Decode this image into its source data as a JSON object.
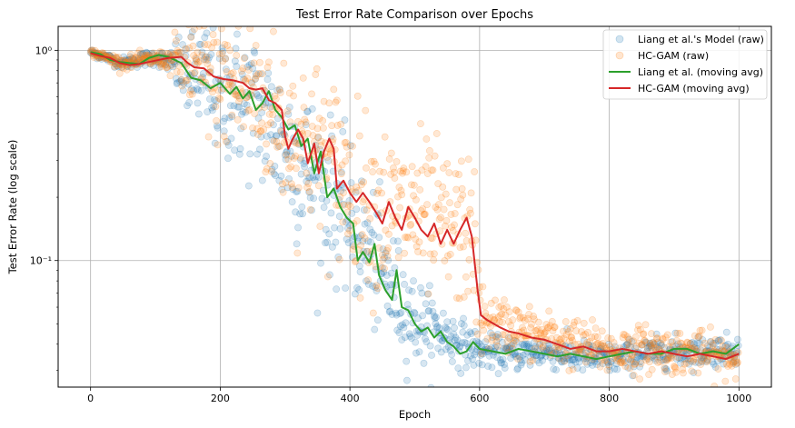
{
  "chart_data": {
    "type": "scatter",
    "title": "Test Error Rate Comparison over Epochs",
    "xlabel": "Epoch",
    "ylabel": "Test Error Rate (log scale)",
    "xlim": [
      -50,
      1050
    ],
    "ylim": [
      0.025,
      1.3
    ],
    "yscale": "log",
    "grid": true,
    "legend_position": "top-right",
    "x_ticks": [
      0,
      200,
      400,
      600,
      800,
      1000
    ],
    "x_tick_labels": [
      "0",
      "200",
      "400",
      "600",
      "800",
      "1000"
    ],
    "y_major_ticks": [
      0.1,
      1
    ],
    "y_major_labels": [
      "10⁻¹",
      "10⁰"
    ],
    "y_minor_ticks": [
      0.03,
      0.04,
      0.05,
      0.06,
      0.07,
      0.08,
      0.09,
      0.2,
      0.3,
      0.4,
      0.5,
      0.6,
      0.7,
      0.8,
      0.9
    ],
    "n_raw_points": 1000,
    "colors": {
      "liang": "#1f77b4",
      "hcgam": "#ff7f0e",
      "liang_avg": "#2ca02c",
      "hcgam_avg": "#d62728"
    },
    "series": [
      {
        "name": "Liang et al.'s Model (raw)",
        "kind": "scatter",
        "color": "#1f77b4",
        "anchors": [
          [
            0,
            0.98
          ],
          [
            50,
            0.87
          ],
          [
            100,
            0.93
          ],
          [
            150,
            0.8
          ],
          [
            200,
            0.63
          ],
          [
            250,
            0.55
          ],
          [
            300,
            0.36
          ],
          [
            350,
            0.24
          ],
          [
            400,
            0.15
          ],
          [
            450,
            0.085
          ],
          [
            500,
            0.052
          ],
          [
            550,
            0.044
          ],
          [
            600,
            0.037
          ],
          [
            650,
            0.036
          ],
          [
            700,
            0.037
          ],
          [
            750,
            0.035
          ],
          [
            800,
            0.034
          ],
          [
            850,
            0.036
          ],
          [
            900,
            0.037
          ],
          [
            950,
            0.037
          ],
          [
            1000,
            0.038
          ]
        ],
        "spread": [
          [
            0,
            0.02
          ],
          [
            120,
            0.05
          ],
          [
            150,
            0.3
          ],
          [
            300,
            0.45
          ],
          [
            450,
            0.35
          ],
          [
            520,
            0.2
          ],
          [
            600,
            0.09
          ],
          [
            1000,
            0.08
          ]
        ]
      },
      {
        "name": "HC-GAM (raw)",
        "kind": "scatter",
        "color": "#ff7f0e",
        "anchors": [
          [
            0,
            0.98
          ],
          [
            50,
            0.87
          ],
          [
            100,
            0.91
          ],
          [
            150,
            0.88
          ],
          [
            200,
            0.72
          ],
          [
            250,
            0.64
          ],
          [
            300,
            0.42
          ],
          [
            350,
            0.35
          ],
          [
            380,
            0.28
          ],
          [
            400,
            0.22
          ],
          [
            450,
            0.17
          ],
          [
            500,
            0.17
          ],
          [
            550,
            0.14
          ],
          [
            590,
            0.14
          ],
          [
            600,
            0.052
          ],
          [
            650,
            0.048
          ],
          [
            700,
            0.043
          ],
          [
            750,
            0.04
          ],
          [
            800,
            0.037
          ],
          [
            850,
            0.038
          ],
          [
            900,
            0.037
          ],
          [
            950,
            0.036
          ],
          [
            1000,
            0.034
          ]
        ],
        "spread": [
          [
            0,
            0.02
          ],
          [
            120,
            0.05
          ],
          [
            150,
            0.3
          ],
          [
            300,
            0.45
          ],
          [
            450,
            0.45
          ],
          [
            590,
            0.4
          ],
          [
            610,
            0.15
          ],
          [
            1000,
            0.11
          ]
        ]
      },
      {
        "name": "Liang et al. (moving avg)",
        "kind": "line",
        "color": "#2ca02c",
        "points": [
          [
            0,
            0.98
          ],
          [
            15,
            0.96
          ],
          [
            30,
            0.9
          ],
          [
            45,
            0.88
          ],
          [
            60,
            0.87
          ],
          [
            75,
            0.86
          ],
          [
            90,
            0.92
          ],
          [
            105,
            0.95
          ],
          [
            120,
            0.93
          ],
          [
            140,
            0.87
          ],
          [
            155,
            0.74
          ],
          [
            170,
            0.72
          ],
          [
            185,
            0.66
          ],
          [
            200,
            0.7
          ],
          [
            215,
            0.62
          ],
          [
            225,
            0.67
          ],
          [
            235,
            0.59
          ],
          [
            245,
            0.64
          ],
          [
            255,
            0.52
          ],
          [
            265,
            0.56
          ],
          [
            275,
            0.64
          ],
          [
            285,
            0.52
          ],
          [
            295,
            0.48
          ],
          [
            305,
            0.42
          ],
          [
            315,
            0.44
          ],
          [
            325,
            0.35
          ],
          [
            335,
            0.38
          ],
          [
            345,
            0.26
          ],
          [
            355,
            0.33
          ],
          [
            365,
            0.2
          ],
          [
            375,
            0.22
          ],
          [
            385,
            0.18
          ],
          [
            395,
            0.16
          ],
          [
            405,
            0.15
          ],
          [
            412,
            0.1
          ],
          [
            420,
            0.11
          ],
          [
            430,
            0.098
          ],
          [
            438,
            0.12
          ],
          [
            445,
            0.085
          ],
          [
            455,
            0.072
          ],
          [
            465,
            0.065
          ],
          [
            472,
            0.09
          ],
          [
            480,
            0.06
          ],
          [
            490,
            0.058
          ],
          [
            500,
            0.05
          ],
          [
            510,
            0.046
          ],
          [
            520,
            0.048
          ],
          [
            530,
            0.043
          ],
          [
            540,
            0.046
          ],
          [
            550,
            0.041
          ],
          [
            560,
            0.039
          ],
          [
            570,
            0.036
          ],
          [
            580,
            0.037
          ],
          [
            590,
            0.041
          ],
          [
            600,
            0.038
          ],
          [
            620,
            0.037
          ],
          [
            640,
            0.036
          ],
          [
            660,
            0.038
          ],
          [
            680,
            0.037
          ],
          [
            700,
            0.036
          ],
          [
            720,
            0.035
          ],
          [
            740,
            0.036
          ],
          [
            760,
            0.035
          ],
          [
            780,
            0.034
          ],
          [
            800,
            0.035
          ],
          [
            820,
            0.036
          ],
          [
            840,
            0.037
          ],
          [
            860,
            0.036
          ],
          [
            880,
            0.036
          ],
          [
            900,
            0.038
          ],
          [
            920,
            0.038
          ],
          [
            940,
            0.036
          ],
          [
            960,
            0.037
          ],
          [
            980,
            0.036
          ],
          [
            1000,
            0.04
          ]
        ]
      },
      {
        "name": "HC-GAM (moving avg)",
        "kind": "line",
        "color": "#d62728",
        "points": [
          [
            0,
            0.97
          ],
          [
            15,
            0.94
          ],
          [
            30,
            0.92
          ],
          [
            45,
            0.87
          ],
          [
            60,
            0.85
          ],
          [
            75,
            0.86
          ],
          [
            90,
            0.88
          ],
          [
            105,
            0.9
          ],
          [
            120,
            0.92
          ],
          [
            140,
            0.93
          ],
          [
            150,
            0.87
          ],
          [
            160,
            0.83
          ],
          [
            175,
            0.82
          ],
          [
            190,
            0.75
          ],
          [
            205,
            0.73
          ],
          [
            220,
            0.72
          ],
          [
            235,
            0.7
          ],
          [
            245,
            0.66
          ],
          [
            255,
            0.65
          ],
          [
            265,
            0.66
          ],
          [
            275,
            0.58
          ],
          [
            285,
            0.56
          ],
          [
            295,
            0.52
          ],
          [
            300,
            0.39
          ],
          [
            305,
            0.34
          ],
          [
            312,
            0.38
          ],
          [
            320,
            0.42
          ],
          [
            328,
            0.38
          ],
          [
            335,
            0.29
          ],
          [
            345,
            0.36
          ],
          [
            352,
            0.26
          ],
          [
            360,
            0.33
          ],
          [
            368,
            0.38
          ],
          [
            375,
            0.34
          ],
          [
            380,
            0.22
          ],
          [
            390,
            0.24
          ],
          [
            400,
            0.21
          ],
          [
            410,
            0.19
          ],
          [
            420,
            0.21
          ],
          [
            430,
            0.19
          ],
          [
            440,
            0.17
          ],
          [
            450,
            0.15
          ],
          [
            460,
            0.19
          ],
          [
            470,
            0.16
          ],
          [
            480,
            0.14
          ],
          [
            490,
            0.18
          ],
          [
            500,
            0.16
          ],
          [
            510,
            0.14
          ],
          [
            520,
            0.13
          ],
          [
            530,
            0.15
          ],
          [
            540,
            0.12
          ],
          [
            550,
            0.14
          ],
          [
            560,
            0.12
          ],
          [
            570,
            0.14
          ],
          [
            580,
            0.16
          ],
          [
            588,
            0.13
          ],
          [
            592,
            0.1
          ],
          [
            597,
            0.072
          ],
          [
            602,
            0.055
          ],
          [
            612,
            0.052
          ],
          [
            622,
            0.05
          ],
          [
            632,
            0.048
          ],
          [
            645,
            0.046
          ],
          [
            660,
            0.045
          ],
          [
            680,
            0.043
          ],
          [
            700,
            0.042
          ],
          [
            720,
            0.04
          ],
          [
            740,
            0.038
          ],
          [
            760,
            0.039
          ],
          [
            780,
            0.037
          ],
          [
            800,
            0.037
          ],
          [
            820,
            0.038
          ],
          [
            840,
            0.037
          ],
          [
            860,
            0.036
          ],
          [
            880,
            0.037
          ],
          [
            900,
            0.036
          ],
          [
            920,
            0.035
          ],
          [
            940,
            0.036
          ],
          [
            960,
            0.035
          ],
          [
            980,
            0.034
          ],
          [
            1000,
            0.036
          ]
        ]
      }
    ]
  }
}
